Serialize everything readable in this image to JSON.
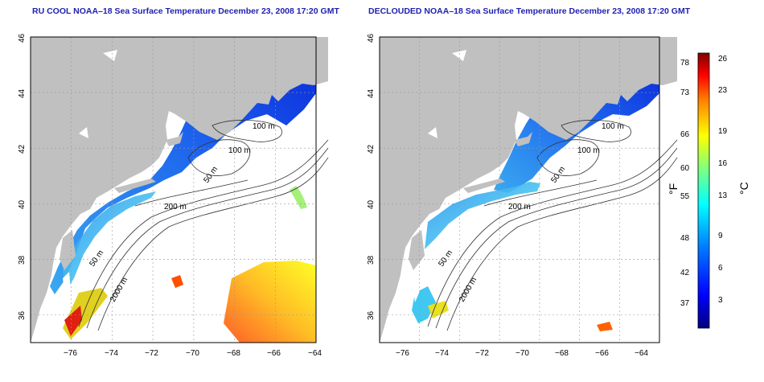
{
  "maps": [
    {
      "title": "RU COOL NOAA–18 Sea Surface Temperature December 23, 2008 17:20 GMT",
      "contour_labels": [
        "100 m",
        "100 m",
        "50 m",
        "200 m",
        "50 m",
        "2000 m"
      ]
    },
    {
      "title": "DECLOUDED NOAA–18 Sea Surface Temperature December 23, 2008 17:20 GMT",
      "contour_labels": [
        "100 m",
        "100 m",
        "50 m",
        "200 m",
        "50 m",
        "2000 m"
      ]
    }
  ],
  "axes": {
    "x_ticks": [
      "−76",
      "−74",
      "−72",
      "−70",
      "−68",
      "−66",
      "−64"
    ],
    "y_ticks": [
      "46",
      "44",
      "42",
      "40",
      "38",
      "36"
    ],
    "x_range": [
      -77,
      -63
    ],
    "y_range": [
      35,
      46
    ]
  },
  "colorbar": {
    "fahrenheit_ticks": [
      "78",
      "73",
      "66",
      "60",
      "55",
      "48",
      "42",
      "37"
    ],
    "celsius_ticks": [
      "26",
      "23",
      "19",
      "16",
      "13",
      "9",
      "6",
      "3"
    ],
    "fahrenheit_unit": "°F",
    "celsius_unit": "°C",
    "colors": [
      "#00007f",
      "#0000ff",
      "#0080ff",
      "#00ffff",
      "#80ff80",
      "#ffff00",
      "#ff8000",
      "#ff0000",
      "#7f0000"
    ]
  },
  "colors": {
    "land": "#c0c0c0",
    "water_missing": "#ffffff",
    "title": "#1f1fb0"
  }
}
